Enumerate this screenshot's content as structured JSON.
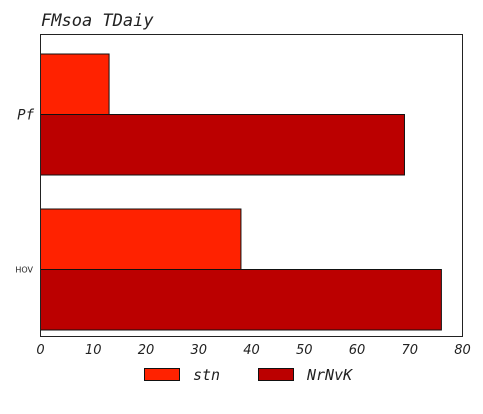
{
  "chart_data": {
    "type": "bar",
    "orientation": "horizontal",
    "title": "FMsoa TDaiy",
    "xlabel": "",
    "ylabel": "",
    "xlim": [
      0,
      80
    ],
    "xticks": [
      0,
      10,
      20,
      30,
      40,
      50,
      60,
      70,
      80
    ],
    "categories": [
      "Pf",
      "HOV"
    ],
    "series": [
      {
        "name": "stn",
        "color": "#ff2200",
        "values": [
          13,
          38
        ]
      },
      {
        "name": "NrNvK",
        "color": "#bb0000",
        "values": [
          69,
          76
        ]
      }
    ],
    "grid": false,
    "legend_position": "bottom-center"
  }
}
